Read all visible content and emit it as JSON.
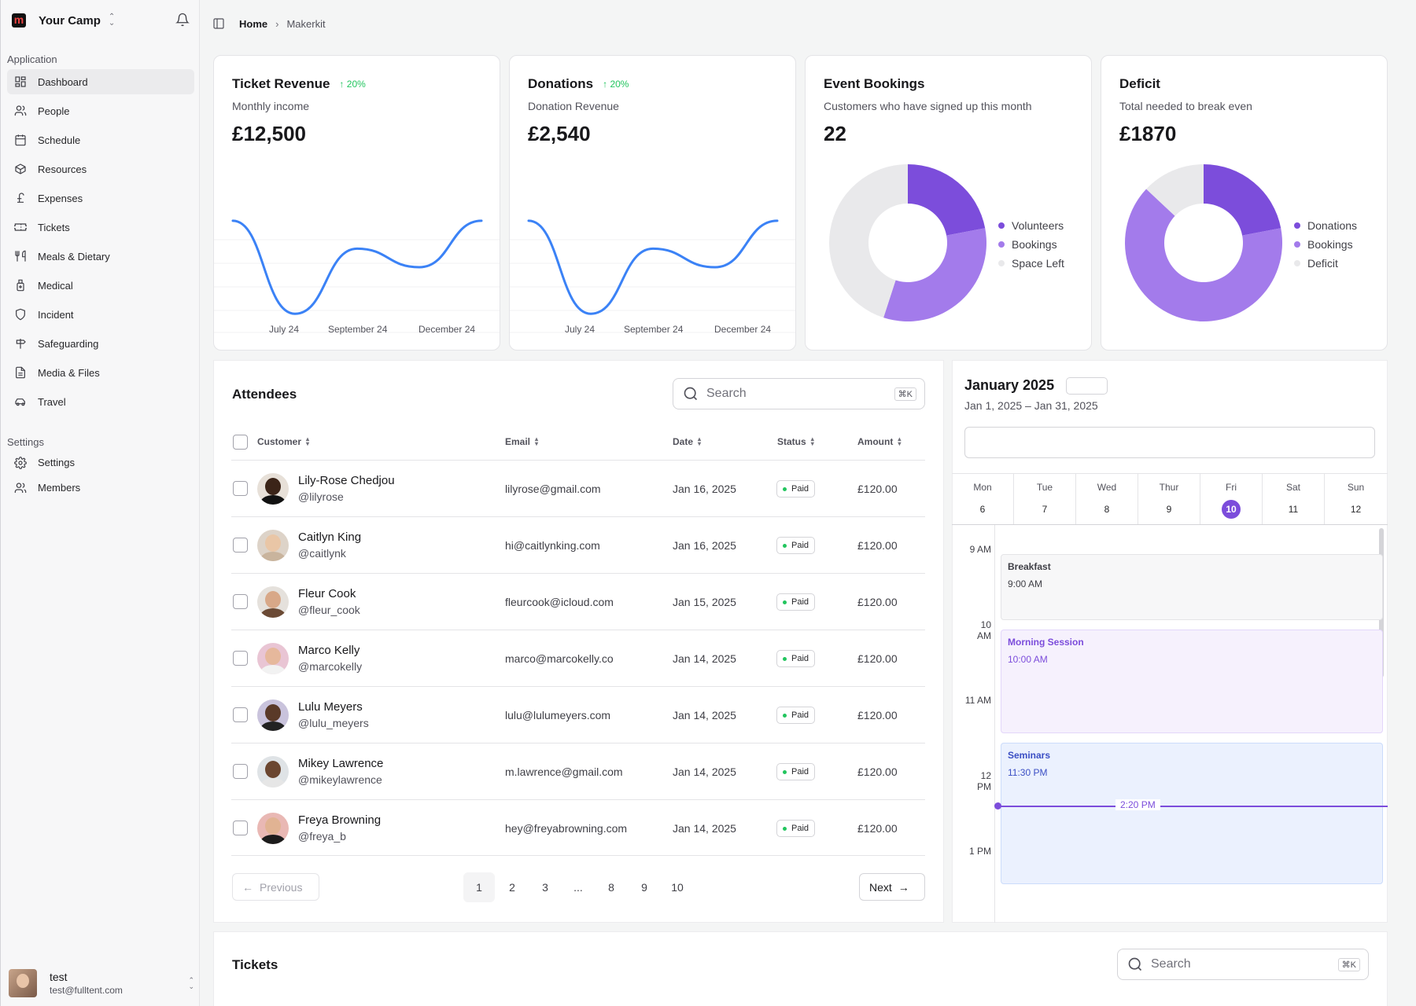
{
  "team": {
    "name": "Your Camp",
    "logo": "m"
  },
  "sidebar": {
    "application_label": "Application",
    "settings_label": "Settings",
    "items": [
      {
        "label": "Dashboard",
        "icon": "dashboard-icon"
      },
      {
        "label": "People",
        "icon": "people-icon"
      },
      {
        "label": "Schedule",
        "icon": "calendar-icon"
      },
      {
        "label": "Resources",
        "icon": "box-icon"
      },
      {
        "label": "Expenses",
        "icon": "pound-icon"
      },
      {
        "label": "Tickets",
        "icon": "ticket-icon"
      },
      {
        "label": "Meals & Dietary",
        "icon": "utensils-icon"
      },
      {
        "label": "Medical",
        "icon": "medical-icon"
      },
      {
        "label": "Incident",
        "icon": "shield-icon"
      },
      {
        "label": "Safeguarding",
        "icon": "signpost-icon"
      },
      {
        "label": "Media & Files",
        "icon": "file-icon"
      },
      {
        "label": "Travel",
        "icon": "car-icon"
      }
    ],
    "settings_items": [
      {
        "label": "Settings",
        "icon": "gear-icon"
      },
      {
        "label": "Members",
        "icon": "members-icon"
      }
    ]
  },
  "user": {
    "name": "test",
    "email": "test@fulltent.com"
  },
  "breadcrumb": {
    "home": "Home",
    "current": "Makerkit"
  },
  "cards": {
    "ticket_revenue": {
      "title": "Ticket Revenue",
      "trend": "20%",
      "subtitle": "Monthly income",
      "value": "£12,500"
    },
    "donations": {
      "title": "Donations",
      "trend": "20%",
      "subtitle": "Donation Revenue",
      "value": "£2,540"
    },
    "event_bookings": {
      "title": "Event Bookings",
      "subtitle": "Customers who have signed up this month",
      "value": "22"
    },
    "deficit": {
      "title": "Deficit",
      "subtitle": "Total needed to break even",
      "value": "£1870"
    }
  },
  "chart_data": [
    {
      "type": "line",
      "x_ticks": [
        "July  24",
        "September  24",
        "December  24"
      ],
      "y": [
        92,
        12,
        68,
        52,
        92
      ],
      "color": "#3b82f6"
    },
    {
      "type": "line",
      "x_ticks": [
        "July  24",
        "September  24",
        "December  24"
      ],
      "y": [
        92,
        12,
        68,
        52,
        92
      ],
      "color": "#3b82f6"
    },
    {
      "type": "pie",
      "labels": [
        "Volunteers",
        "Bookings",
        "Space Left"
      ],
      "values": [
        22,
        33,
        45
      ],
      "colors": [
        "#7c4ddb",
        "#a37beb",
        "#e9e9eb"
      ]
    },
    {
      "type": "pie",
      "labels": [
        "Donations",
        "Bookings",
        "Deficit"
      ],
      "values": [
        22,
        65,
        13
      ],
      "colors": [
        "#7c4ddb",
        "#a37beb",
        "#e9e9eb"
      ]
    }
  ],
  "attendees": {
    "title": "Attendees",
    "search_placeholder": "Search",
    "shortcut": "⌘K",
    "columns": [
      "Customer",
      "Email",
      "Date",
      "Status",
      "Amount"
    ],
    "rows": [
      {
        "name": "Lily-Rose Chedjou",
        "handle": "@lilyrose",
        "email": "lilyrose@gmail.com",
        "date": "Jan 16, 2025",
        "status": "Paid",
        "amount": "£120.00"
      },
      {
        "name": "Caitlyn King",
        "handle": "@caitlynk",
        "email": "hi@caitlynking.com",
        "date": "Jan 16, 2025",
        "status": "Paid",
        "amount": "£120.00"
      },
      {
        "name": "Fleur Cook",
        "handle": "@fleur_cook",
        "email": "fleurcook@icloud.com",
        "date": "Jan 15, 2025",
        "status": "Paid",
        "amount": "£120.00"
      },
      {
        "name": "Marco Kelly",
        "handle": "@marcokelly",
        "email": "marco@marcokelly.co",
        "date": "Jan 14, 2025",
        "status": "Paid",
        "amount": "£120.00"
      },
      {
        "name": "Lulu Meyers",
        "handle": "@lulu_meyers",
        "email": "lulu@lulumeyers.com",
        "date": "Jan 14, 2025",
        "status": "Paid",
        "amount": "£120.00"
      },
      {
        "name": "Mikey Lawrence",
        "handle": "@mikeylawrence",
        "email": "m.lawrence@gmail.com",
        "date": "Jan 14, 2025",
        "status": "Paid",
        "amount": "£120.00"
      },
      {
        "name": "Freya Browning",
        "handle": "@freya_b",
        "email": "hey@freyabrowning.com",
        "date": "Jan 14, 2025",
        "status": "Paid",
        "amount": "£120.00"
      }
    ],
    "pagination": {
      "previous": "Previous",
      "next": "Next",
      "pages": [
        "1",
        "2",
        "3",
        "...",
        "8",
        "9",
        "10"
      ],
      "current": "1"
    }
  },
  "calendar": {
    "month": "January 2025",
    "range": "Jan 1, 2025 – Jan 31, 2025",
    "days": [
      {
        "name": "Mon",
        "num": "6"
      },
      {
        "name": "Tue",
        "num": "7"
      },
      {
        "name": "Wed",
        "num": "8"
      },
      {
        "name": "Thur",
        "num": "9"
      },
      {
        "name": "Fri",
        "num": "10"
      },
      {
        "name": "Sat",
        "num": "11"
      },
      {
        "name": "Sun",
        "num": "12"
      }
    ],
    "today": "10",
    "times": [
      "9 AM",
      "10 AM",
      "11 AM",
      "12 PM",
      "1 PM"
    ],
    "events": [
      {
        "title": "Breakfast",
        "time": "9:00 AM"
      },
      {
        "title": "Morning Session",
        "time": "10:00 AM"
      },
      {
        "title": "Seminars",
        "time": "11:30 PM"
      }
    ],
    "now": "2:20 PM"
  },
  "tickets": {
    "title": "Tickets",
    "search_placeholder": "Search",
    "shortcut": "⌘K"
  },
  "colors": {
    "accent": "#7c4ddb",
    "line": "#3b82f6",
    "success": "#22c55e"
  }
}
